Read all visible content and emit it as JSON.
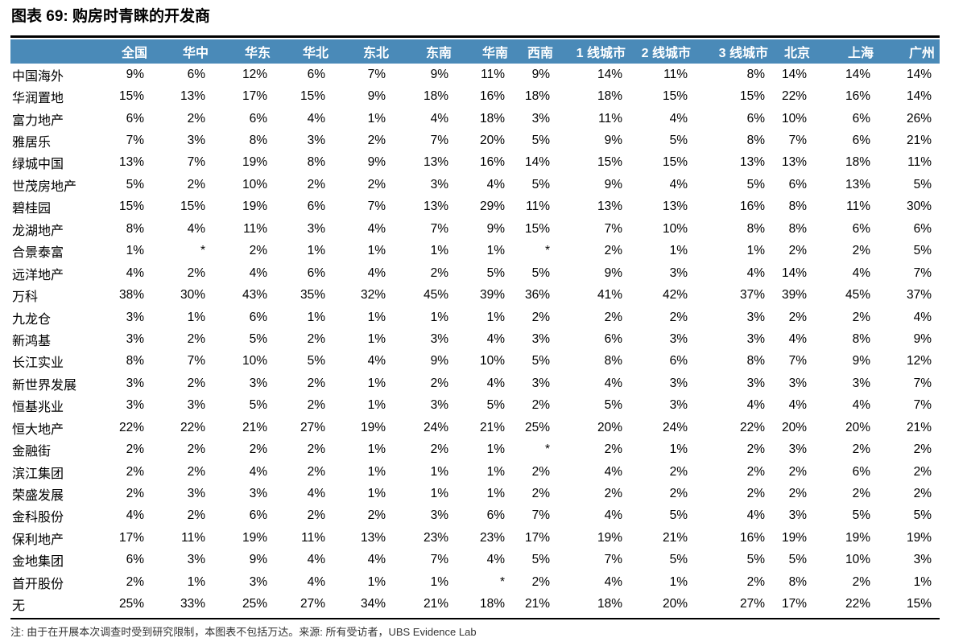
{
  "title": "图表 69:  购房时青睐的开发商",
  "note": "注: 由于在开展本次调查时受到研究限制，本图表不包括万达。来源: 所有受访者，UBS Evidence Lab",
  "colors": {
    "header_bg": "#4a8ab8",
    "header_text": "#ffffff"
  },
  "table": {
    "columns": [
      "",
      "全国",
      "华中",
      "华东",
      "华北",
      "东北",
      "东南",
      "华南",
      "西南",
      "1 线城市",
      "2 线城市",
      "3 线城市",
      "北京",
      "上海",
      "广州"
    ],
    "rows": [
      {
        "name": "中国海外",
        "values": [
          "9%",
          "6%",
          "12%",
          "6%",
          "7%",
          "9%",
          "11%",
          "9%",
          "14%",
          "11%",
          "8%",
          "14%",
          "14%",
          "14%"
        ]
      },
      {
        "name": "华润置地",
        "values": [
          "15%",
          "13%",
          "17%",
          "15%",
          "9%",
          "18%",
          "16%",
          "18%",
          "18%",
          "15%",
          "15%",
          "22%",
          "16%",
          "14%"
        ]
      },
      {
        "name": "富力地产",
        "values": [
          "6%",
          "2%",
          "6%",
          "4%",
          "1%",
          "4%",
          "18%",
          "3%",
          "11%",
          "4%",
          "6%",
          "10%",
          "6%",
          "26%"
        ]
      },
      {
        "name": "雅居乐",
        "values": [
          "7%",
          "3%",
          "8%",
          "3%",
          "2%",
          "7%",
          "20%",
          "5%",
          "9%",
          "5%",
          "8%",
          "7%",
          "6%",
          "21%"
        ]
      },
      {
        "name": "绿城中国",
        "values": [
          "13%",
          "7%",
          "19%",
          "8%",
          "9%",
          "13%",
          "16%",
          "14%",
          "15%",
          "15%",
          "13%",
          "13%",
          "18%",
          "11%"
        ]
      },
      {
        "name": "世茂房地产",
        "values": [
          "5%",
          "2%",
          "10%",
          "2%",
          "2%",
          "3%",
          "4%",
          "5%",
          "9%",
          "4%",
          "5%",
          "6%",
          "13%",
          "5%"
        ]
      },
      {
        "name": "碧桂园",
        "values": [
          "15%",
          "15%",
          "19%",
          "6%",
          "7%",
          "13%",
          "29%",
          "11%",
          "13%",
          "13%",
          "16%",
          "8%",
          "11%",
          "30%"
        ]
      },
      {
        "name": "龙湖地产",
        "values": [
          "8%",
          "4%",
          "11%",
          "3%",
          "4%",
          "7%",
          "9%",
          "15%",
          "7%",
          "10%",
          "8%",
          "8%",
          "6%",
          "6%"
        ]
      },
      {
        "name": "合景泰富",
        "values": [
          "1%",
          "*",
          "2%",
          "1%",
          "1%",
          "1%",
          "1%",
          "*",
          "2%",
          "1%",
          "1%",
          "2%",
          "2%",
          "5%"
        ]
      },
      {
        "name": "远洋地产",
        "values": [
          "4%",
          "2%",
          "4%",
          "6%",
          "4%",
          "2%",
          "5%",
          "5%",
          "9%",
          "3%",
          "4%",
          "14%",
          "4%",
          "7%"
        ]
      },
      {
        "name": "万科",
        "values": [
          "38%",
          "30%",
          "43%",
          "35%",
          "32%",
          "45%",
          "39%",
          "36%",
          "41%",
          "42%",
          "37%",
          "39%",
          "45%",
          "37%"
        ]
      },
      {
        "name": "九龙仓",
        "values": [
          "3%",
          "1%",
          "6%",
          "1%",
          "1%",
          "1%",
          "1%",
          "2%",
          "2%",
          "2%",
          "3%",
          "2%",
          "2%",
          "4%"
        ]
      },
      {
        "name": "新鸿基",
        "values": [
          "3%",
          "2%",
          "5%",
          "2%",
          "1%",
          "3%",
          "4%",
          "3%",
          "6%",
          "3%",
          "3%",
          "4%",
          "8%",
          "9%"
        ]
      },
      {
        "name": "长江实业",
        "values": [
          "8%",
          "7%",
          "10%",
          "5%",
          "4%",
          "9%",
          "10%",
          "5%",
          "8%",
          "6%",
          "8%",
          "7%",
          "9%",
          "12%"
        ]
      },
      {
        "name": "新世界发展",
        "values": [
          "3%",
          "2%",
          "3%",
          "2%",
          "1%",
          "2%",
          "4%",
          "3%",
          "4%",
          "3%",
          "3%",
          "3%",
          "3%",
          "7%"
        ]
      },
      {
        "name": "恒基兆业",
        "values": [
          "3%",
          "3%",
          "5%",
          "2%",
          "1%",
          "3%",
          "5%",
          "2%",
          "5%",
          "3%",
          "4%",
          "4%",
          "4%",
          "7%"
        ]
      },
      {
        "name": "恒大地产",
        "values": [
          "22%",
          "22%",
          "21%",
          "27%",
          "19%",
          "24%",
          "21%",
          "25%",
          "20%",
          "24%",
          "22%",
          "20%",
          "20%",
          "21%"
        ]
      },
      {
        "name": "金融街",
        "values": [
          "2%",
          "2%",
          "2%",
          "2%",
          "1%",
          "2%",
          "1%",
          "*",
          "2%",
          "1%",
          "2%",
          "3%",
          "2%",
          "2%"
        ]
      },
      {
        "name": "滨江集团",
        "values": [
          "2%",
          "2%",
          "4%",
          "2%",
          "1%",
          "1%",
          "1%",
          "2%",
          "4%",
          "2%",
          "2%",
          "2%",
          "6%",
          "2%"
        ]
      },
      {
        "name": "荣盛发展",
        "values": [
          "2%",
          "3%",
          "3%",
          "4%",
          "1%",
          "1%",
          "1%",
          "2%",
          "2%",
          "2%",
          "2%",
          "2%",
          "2%",
          "2%"
        ]
      },
      {
        "name": "金科股份",
        "values": [
          "4%",
          "2%",
          "6%",
          "2%",
          "2%",
          "3%",
          "6%",
          "7%",
          "4%",
          "5%",
          "4%",
          "3%",
          "5%",
          "5%"
        ]
      },
      {
        "name": "保利地产",
        "values": [
          "17%",
          "11%",
          "19%",
          "11%",
          "13%",
          "23%",
          "23%",
          "17%",
          "19%",
          "21%",
          "16%",
          "19%",
          "19%",
          "19%"
        ]
      },
      {
        "name": "金地集团",
        "values": [
          "6%",
          "3%",
          "9%",
          "4%",
          "4%",
          "7%",
          "4%",
          "5%",
          "7%",
          "5%",
          "5%",
          "5%",
          "10%",
          "3%"
        ]
      },
      {
        "name": "首开股份",
        "values": [
          "2%",
          "1%",
          "3%",
          "4%",
          "1%",
          "1%",
          "*",
          "2%",
          "4%",
          "1%",
          "2%",
          "8%",
          "2%",
          "1%"
        ]
      },
      {
        "name": "无",
        "values": [
          "25%",
          "33%",
          "25%",
          "27%",
          "34%",
          "21%",
          "18%",
          "21%",
          "18%",
          "20%",
          "27%",
          "17%",
          "22%",
          "15%"
        ]
      }
    ]
  }
}
